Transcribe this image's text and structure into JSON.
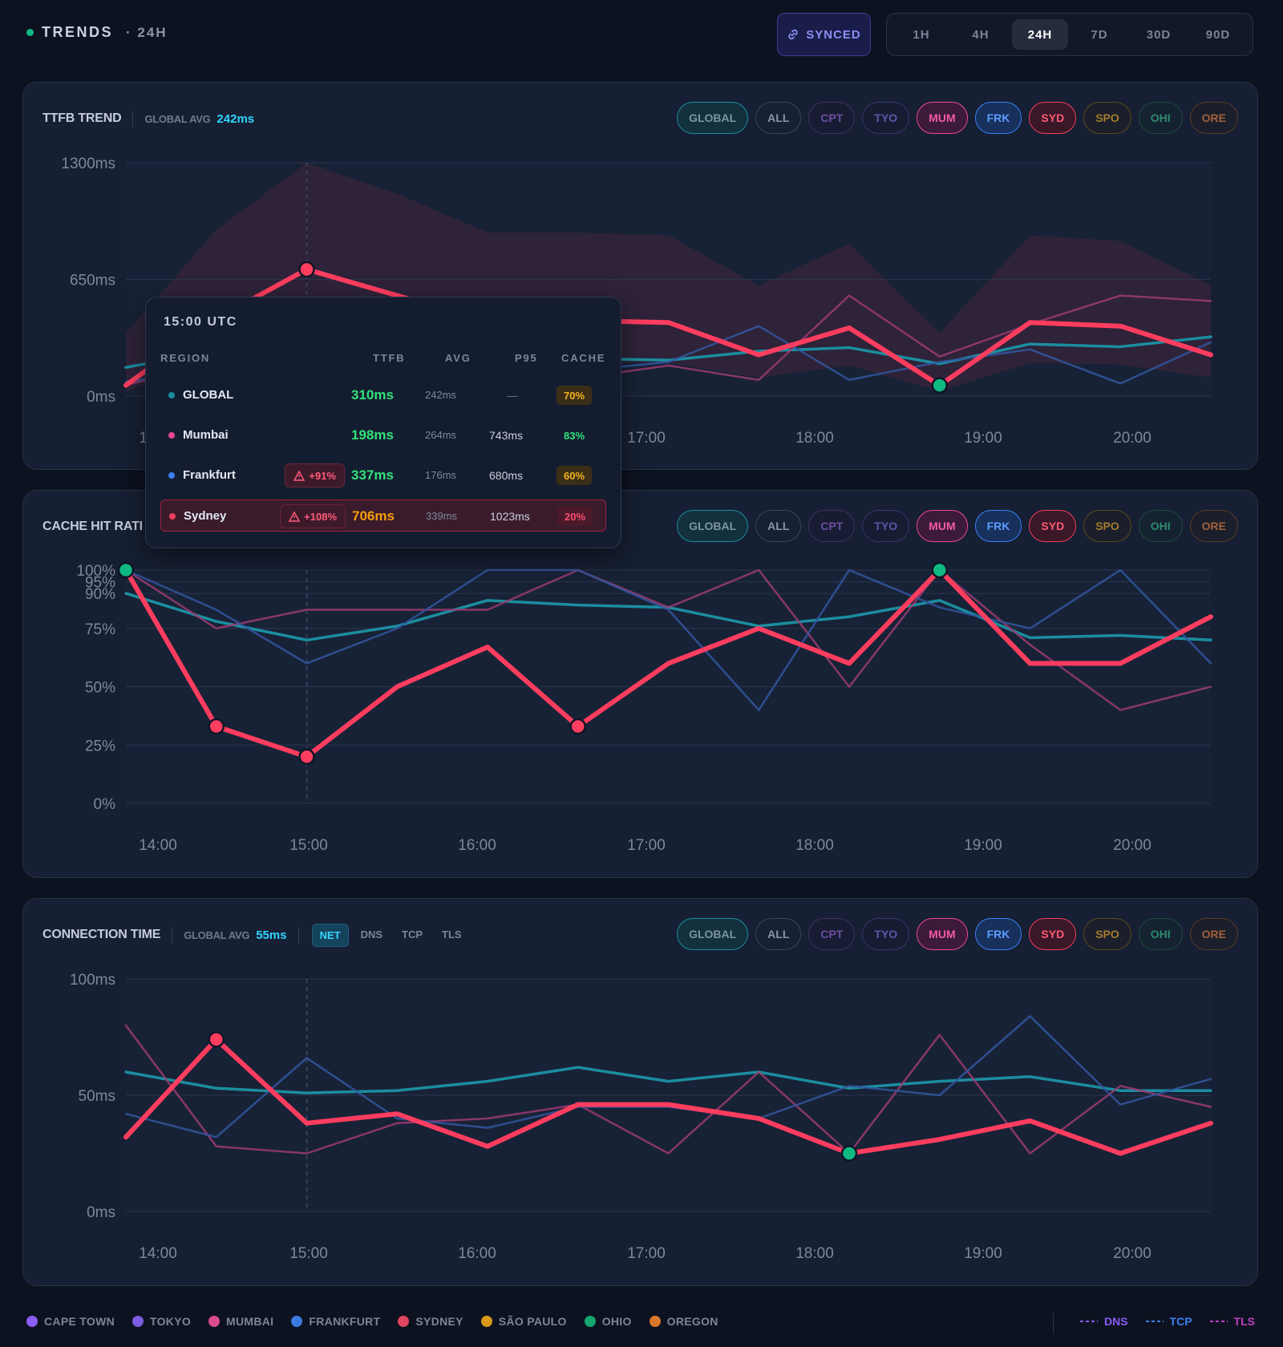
{
  "header": {
    "title": "TRENDS",
    "range_label": "· 24H",
    "synced_label": "SYNCED",
    "ranges": [
      "1H",
      "4H",
      "24H",
      "7D",
      "30D",
      "90D"
    ],
    "active_range": "24H"
  },
  "region_chips": [
    {
      "label": "GLOBAL",
      "color": "#1b8ea0",
      "bg": "#12313d",
      "text": "#7e93a3"
    },
    {
      "label": "ALL",
      "color": "#3a4458",
      "bg": "#182133",
      "text": "#8a94a8"
    },
    {
      "label": "CPT",
      "color": "#43305f",
      "bg": "#171c33",
      "text": "#6b4fa0"
    },
    {
      "label": "TYO",
      "color": "#3a3570",
      "bg": "#171c33",
      "text": "#5c58a8"
    },
    {
      "label": "MUM",
      "color": "#ec4899",
      "bg": "#3b1a3a",
      "text": "#f05aa8"
    },
    {
      "label": "FRK",
      "color": "#3b82f6",
      "bg": "#17305c",
      "text": "#5c9dff"
    },
    {
      "label": "SYD",
      "color": "#f43f5e",
      "bg": "#3a1828",
      "text": "#ff5a75"
    },
    {
      "label": "SPO",
      "color": "#5f4a1e",
      "bg": "#1b1f2b",
      "text": "#a57c2a"
    },
    {
      "label": "OHI",
      "color": "#1c4c44",
      "bg": "#15222f",
      "text": "#2f8a6f"
    },
    {
      "label": "ORE",
      "color": "#5a3a28",
      "bg": "#1b1f2b",
      "text": "#a3603a"
    }
  ],
  "panels": {
    "ttfb": {
      "title": "TTFB TREND",
      "avg_label": "GLOBAL AVG",
      "avg_value": "242ms"
    },
    "cache": {
      "title": "CACHE HIT RATI"
    },
    "conn": {
      "title": "CONNECTION TIME",
      "avg_label": "GLOBAL AVG",
      "avg_value": "55ms",
      "tabs": [
        "NET",
        "DNS",
        "TCP",
        "TLS"
      ],
      "active_tab": "NET"
    }
  },
  "tooltip": {
    "time": "15:00 UTC",
    "headers": {
      "region": "REGION",
      "ttfb": "TTFB",
      "avg": "AVG",
      "p95": "P95",
      "cache": "CACHE"
    },
    "rows": [
      {
        "region": "GLOBAL",
        "dot": "#1b8ea0",
        "badge": "",
        "ttfb": "310ms",
        "ttfb_color": "#34e27a",
        "avg": "242ms",
        "p95": "—",
        "cache": "70%",
        "cache_color": "#f5b320",
        "cache_bg": "#3a2f16"
      },
      {
        "region": "Mumbai",
        "dot": "#ec4899",
        "badge": "",
        "ttfb": "198ms",
        "ttfb_color": "#34e27a",
        "avg": "264ms",
        "p95": "743ms",
        "cache": "83%",
        "cache_color": "#34e27a",
        "cache_bg": "transparent"
      },
      {
        "region": "Frankfurt",
        "dot": "#3b82f6",
        "badge": "+91%",
        "ttfb": "337ms",
        "ttfb_color": "#34e27a",
        "avg": "176ms",
        "p95": "680ms",
        "cache": "60%",
        "cache_color": "#f5b320",
        "cache_bg": "#3a2f16"
      },
      {
        "region": "Sydney",
        "dot": "#f43f5e",
        "badge": "+108%",
        "ttfb": "706ms",
        "ttfb_color": "#f59e0b",
        "avg": "339ms",
        "p95": "1023ms",
        "cache": "20%",
        "cache_color": "#ff4d6d",
        "cache_bg": "#4a1a2b"
      }
    ]
  },
  "x_ticks": [
    "14:00",
    "15:00",
    "16:00",
    "17:00",
    "18:00",
    "19:00",
    "20:00"
  ],
  "chart_data": [
    {
      "type": "line",
      "title": "TTFB TREND",
      "yticks": [
        "1300ms",
        "650ms",
        "0ms"
      ],
      "ylim": [
        0,
        1300
      ],
      "x": [
        "14:00",
        "14:30",
        "15:00",
        "15:30",
        "16:00",
        "16:30",
        "17:00",
        "17:30",
        "18:00",
        "18:30",
        "19:00",
        "19:30",
        "20:00"
      ],
      "series": [
        {
          "name": "GLOBAL",
          "color": "#1b8ea0",
          "values": [
            160,
            250,
            310,
            280,
            230,
            210,
            200,
            250,
            270,
            180,
            290,
            275,
            330
          ]
        },
        {
          "name": "Mumbai",
          "color": "#9b3b72",
          "values": [
            60,
            200,
            198,
            250,
            160,
            100,
            170,
            90,
            560,
            220,
            400,
            560,
            530
          ]
        },
        {
          "name": "Frankfurt",
          "color": "#3356a0",
          "values": [
            80,
            150,
            337,
            300,
            220,
            140,
            190,
            390,
            90,
            190,
            260,
            70,
            300
          ]
        },
        {
          "name": "Sydney",
          "color": "#ff3d5f",
          "values": [
            60,
            430,
            706,
            560,
            420,
            420,
            410,
            230,
            380,
            60,
            410,
            390,
            230
          ]
        }
      ]
    },
    {
      "type": "line",
      "title": "CACHE HIT RATI",
      "yticks": [
        "100%",
        "95%",
        "90%",
        "75%",
        "50%",
        "25%",
        "0%"
      ],
      "ylim": [
        0,
        100
      ],
      "x": [
        "14:00",
        "14:30",
        "15:00",
        "15:30",
        "16:00",
        "16:30",
        "17:00",
        "17:30",
        "18:00",
        "18:30",
        "19:00",
        "19:30",
        "20:00"
      ],
      "series": [
        {
          "name": "GLOBAL",
          "color": "#1b8ea0",
          "values": [
            90,
            78,
            70,
            76,
            87,
            85,
            84,
            76,
            80,
            87,
            71,
            72,
            70
          ]
        },
        {
          "name": "Mumbai",
          "color": "#9b3b72",
          "values": [
            100,
            75,
            83,
            83,
            83,
            100,
            84,
            100,
            50,
            100,
            68,
            40,
            50
          ]
        },
        {
          "name": "Frankfurt",
          "color": "#3356a0",
          "values": [
            100,
            83,
            60,
            75,
            100,
            100,
            83,
            40,
            100,
            84,
            75,
            100,
            60
          ]
        },
        {
          "name": "Sydney",
          "color": "#ff3d5f",
          "values": [
            100,
            33,
            20,
            50,
            67,
            33,
            60,
            75,
            60,
            100,
            60,
            60,
            80
          ]
        }
      ]
    },
    {
      "type": "line",
      "title": "CONNECTION TIME",
      "yticks": [
        "100ms",
        "50ms",
        "0ms"
      ],
      "ylim": [
        0,
        100
      ],
      "x": [
        "14:00",
        "14:30",
        "15:00",
        "15:30",
        "16:00",
        "16:30",
        "17:00",
        "17:30",
        "18:00",
        "18:30",
        "19:00",
        "19:30",
        "20:00"
      ],
      "series": [
        {
          "name": "GLOBAL",
          "color": "#1b8ea0",
          "values": [
            60,
            53,
            51,
            52,
            56,
            62,
            56,
            60,
            53,
            56,
            58,
            52,
            52
          ]
        },
        {
          "name": "Mumbai",
          "color": "#9b3b72",
          "values": [
            80,
            28,
            25,
            38,
            40,
            46,
            25,
            60,
            25,
            76,
            25,
            54,
            45
          ]
        },
        {
          "name": "Frankfurt",
          "color": "#3356a0",
          "values": [
            42,
            32,
            66,
            40,
            36,
            45,
            45,
            40,
            54,
            50,
            84,
            46,
            57
          ]
        },
        {
          "name": "Sydney",
          "color": "#ff3d5f",
          "values": [
            32,
            74,
            38,
            42,
            28,
            46,
            46,
            40,
            25,
            31,
            39,
            25,
            38
          ]
        }
      ]
    }
  ],
  "legend": {
    "regions": [
      {
        "label": "CAPE TOWN",
        "color": "#8b5cf6"
      },
      {
        "label": "TOKYO",
        "color": "#7c5ce0"
      },
      {
        "label": "MUMBAI",
        "color": "#db4c8c"
      },
      {
        "label": "FRANKFURT",
        "color": "#3b7be0"
      },
      {
        "label": "SYDNEY",
        "color": "#e04661"
      },
      {
        "label": "SÃO PAULO",
        "color": "#d99a1a"
      },
      {
        "label": "OHIO",
        "color": "#15a672"
      },
      {
        "label": "OREGON",
        "color": "#d9782a"
      }
    ],
    "timings": [
      {
        "label": "DNS",
        "color": "#8b5cf6"
      },
      {
        "label": "TCP",
        "color": "#3b82f6"
      },
      {
        "label": "TLS",
        "color": "#c040c0"
      }
    ]
  }
}
